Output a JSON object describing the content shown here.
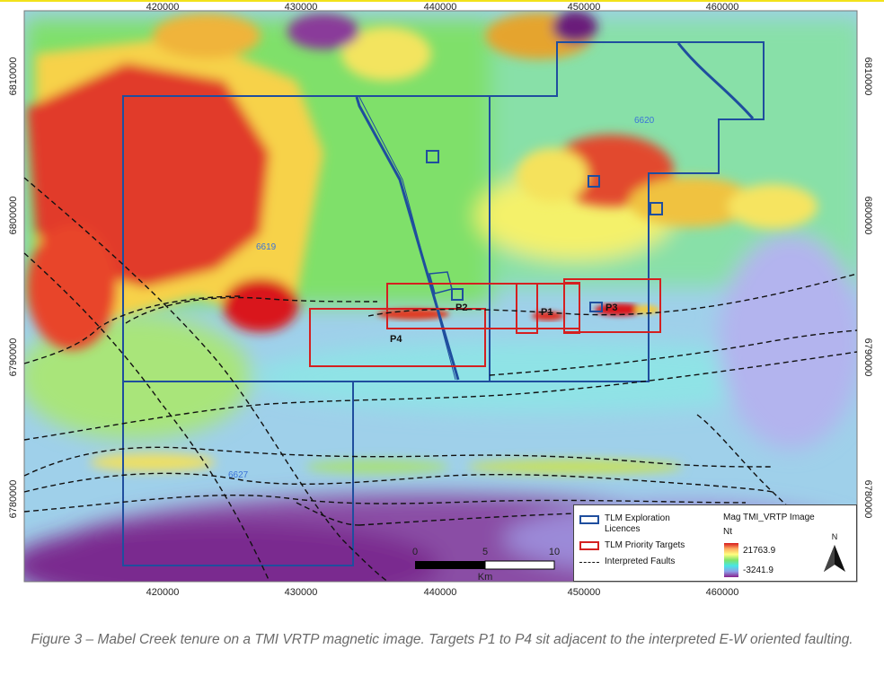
{
  "map": {
    "x_ticks": [
      "420000",
      "430000",
      "440000",
      "450000",
      "460000"
    ],
    "y_ticks": [
      "6810000",
      "6800000",
      "6790000",
      "6780000"
    ],
    "licences": [
      "6620",
      "6619",
      "6627"
    ],
    "targets": [
      "P1",
      "P2",
      "P3",
      "P4"
    ]
  },
  "legend": {
    "licences_label": "TLM Exploration Licences",
    "targets_label": "TLM Priority Targets",
    "faults_label": "Interpreted Faults",
    "image_title": "Mag TMI_VRTP Image",
    "unit": "Nt",
    "max": "21763.9",
    "min": "-3241.9",
    "north": "N"
  },
  "scalebar": {
    "labels": [
      "0",
      "5",
      "10"
    ],
    "unit": "Km"
  },
  "caption": "Figure 3 – Mabel Creek tenure on a TMI VRTP magnetic image. Targets P1 to P4 sit adjacent to the interpreted E-W oriented faulting.",
  "colors": {
    "licence": "#1f4e9e",
    "target": "#d42020",
    "fault": "#111111",
    "high": "#e01e1e",
    "low": "#8a1f8c"
  }
}
